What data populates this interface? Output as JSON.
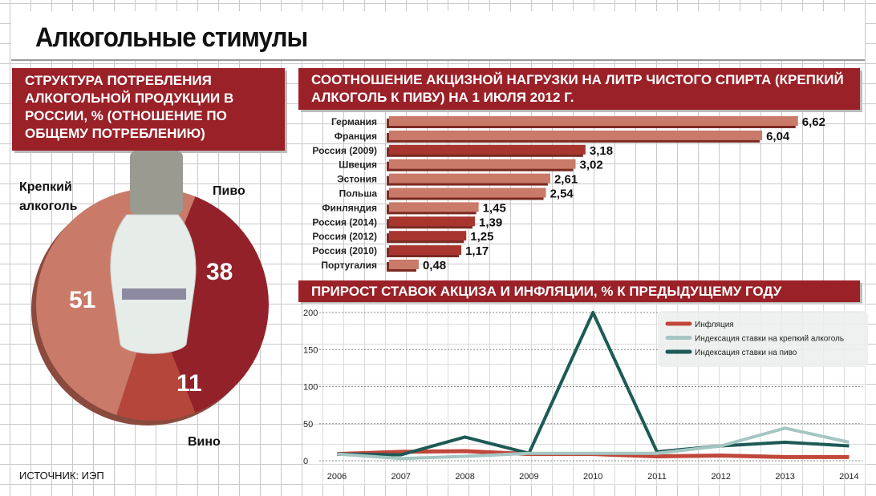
{
  "title": "Алкогольные стимулы",
  "source": "ИСТОЧНИК: ИЭП",
  "colors": {
    "header": "#9b2128",
    "beer": "#93212a",
    "wine": "#b5463c",
    "strong": "#c97a68",
    "bar": "#c97a68",
    "bar_dark": "#a8362f",
    "inflation": "#c0473a",
    "strong_line": "#a5c6c2",
    "beer_line": "#1d5a56"
  },
  "chart_data": [
    {
      "type": "pie",
      "title": "СТРУКТУРА ПОТРЕБЛЕНИЯ АЛКОГОЛЬНОЙ ПРОДУКЦИИ В РОССИИ, % (ОТНОШЕНИЕ ПО ОБЩЕМУ ПОТРЕБЛЕНИЮ)",
      "slices": [
        {
          "label": "Пиво",
          "value": 38
        },
        {
          "label": "Вино",
          "value": 11
        },
        {
          "label": "Крепкий алкоголь",
          "value": 51
        }
      ]
    },
    {
      "type": "bar",
      "orientation": "horizontal",
      "title": "СООТНОШЕНИЕ АКЦИЗНОЙ НАГРУЗКИ НА ЛИТР ЧИСТОГО СПИРТА (КРЕПКИЙ АЛКОГОЛЬ К ПИВУ) НА 1 ИЮЛЯ 2012 Г.",
      "categories": [
        "Германия",
        "Франция",
        "Россия (2009)",
        "Швеция",
        "Эстония",
        "Польша",
        "Финляндия",
        "Россия (2014)",
        "Россия (2012)",
        "Россия (2010)",
        "Португалия"
      ],
      "values": [
        6.62,
        6.04,
        3.18,
        3.02,
        2.61,
        2.54,
        1.45,
        1.39,
        1.25,
        1.17,
        0.48
      ],
      "value_labels": [
        "6,62",
        "6,04",
        "3,18",
        "3,02",
        "2,61",
        "2,54",
        "1,45",
        "1,39",
        "1,25",
        "1,17",
        "0,48"
      ],
      "highlight": [
        "Россия (2009)",
        "Россия (2014)",
        "Россия (2012)",
        "Россия (2010)"
      ]
    },
    {
      "type": "line",
      "title": "ПРИРОСТ СТАВОК АКЦИЗА И ИНФЛЯЦИИ, % К ПРЕДЫДУЩЕМУ ГОДУ",
      "x": [
        "2006",
        "2007",
        "2008",
        "2009",
        "2010",
        "2011",
        "2012",
        "2013",
        "2014"
      ],
      "ylim": [
        0,
        200
      ],
      "yticks": [
        "0",
        "50",
        "100",
        "150",
        "200"
      ],
      "legend": "top-right",
      "series": [
        {
          "name": "Инфляция",
          "values": [
            9,
            12,
            13,
            9,
            9,
            6,
            7,
            5,
            5
          ]
        },
        {
          "name": "Индексация ставки на крепкий алкоголь",
          "values": [
            9,
            3,
            6,
            10,
            10,
            10,
            20,
            44,
            25
          ]
        },
        {
          "name": "Индексация ставки на пиво",
          "values": [
            9,
            8,
            32,
            10,
            200,
            12,
            20,
            25,
            20
          ]
        }
      ]
    }
  ]
}
